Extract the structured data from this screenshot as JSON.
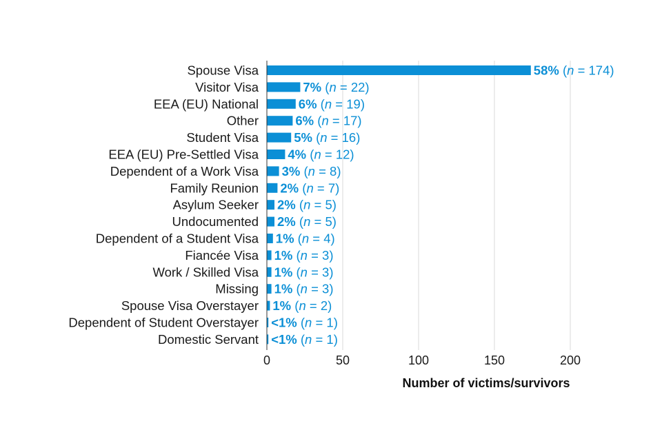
{
  "chart_data": {
    "type": "bar",
    "orientation": "horizontal",
    "categories": [
      "Spouse Visa",
      "Visitor Visa",
      "EEA (EU) National",
      "Other",
      "Student Visa",
      "EEA (EU) Pre-Settled Visa",
      "Dependent of a Work Visa",
      "Family Reunion",
      "Asylum Seeker",
      "Undocumented",
      "Dependent of a Student Visa",
      "Fiancée Visa",
      "Work / Skilled Visa",
      "Missing",
      "Spouse Visa Overstayer",
      "Dependent of Student Overstayer",
      "Domestic Servant"
    ],
    "values": [
      174,
      22,
      19,
      17,
      16,
      12,
      8,
      7,
      5,
      5,
      4,
      3,
      3,
      3,
      2,
      1,
      1
    ],
    "percent_labels": [
      "58%",
      "7%",
      "6%",
      "6%",
      "5%",
      "4%",
      "3%",
      "2%",
      "2%",
      "2%",
      "1%",
      "1%",
      "1%",
      "1%",
      "1%",
      "<1%",
      "<1%"
    ],
    "n_prefix": "n",
    "xlabel": "Number of victims/survivors",
    "ylabel": "",
    "xlim": [
      0,
      230
    ],
    "xticks": [
      "0",
      "50",
      "100",
      "150",
      "200"
    ],
    "tick_values": [
      0,
      50,
      100,
      150,
      200
    ],
    "grid": "vertical",
    "bar_color": "#0b8fd6",
    "label_color": "#0b8fd6"
  }
}
